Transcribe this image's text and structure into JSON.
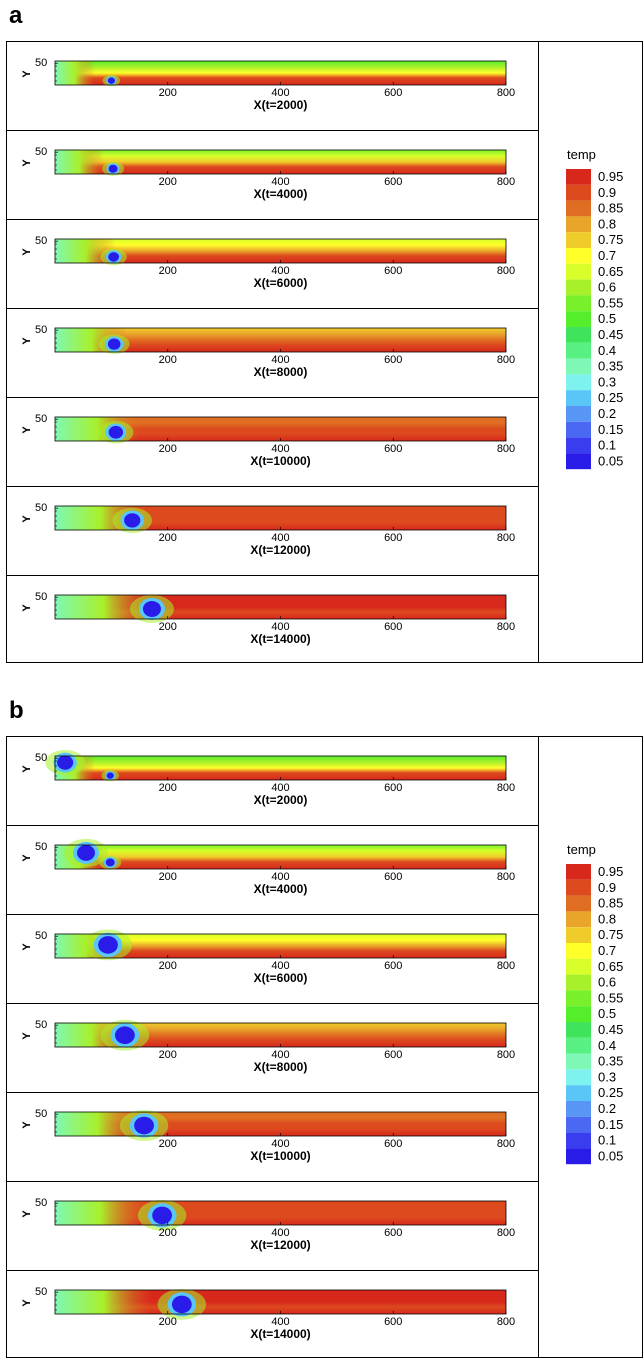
{
  "figures": [
    {
      "letter": "a",
      "panels": [
        {
          "xlabel": "X(t=2000)",
          "bubbles": [
            {
              "x": 100,
              "y": 10,
              "r": 4
            }
          ],
          "hot_extent": 0.0,
          "ylabel": "Y",
          "ytick": "50"
        },
        {
          "xlabel": "X(t=4000)",
          "bubbles": [
            {
              "x": 103,
              "y": 12,
              "r": 5
            }
          ],
          "hot_extent": 0.15,
          "ylabel": "Y",
          "ytick": "50"
        },
        {
          "xlabel": "X(t=6000)",
          "bubbles": [
            {
              "x": 104,
              "y": 14,
              "r": 6
            }
          ],
          "hot_extent": 0.35,
          "ylabel": "Y",
          "ytick": "50"
        },
        {
          "xlabel": "X(t=8000)",
          "bubbles": [
            {
              "x": 105,
              "y": 18,
              "r": 7
            }
          ],
          "hot_extent": 0.55,
          "ylabel": "Y",
          "ytick": "50"
        },
        {
          "xlabel": "X(t=10000)",
          "bubbles": [
            {
              "x": 108,
              "y": 20,
              "r": 8
            }
          ],
          "hot_extent": 0.75,
          "ylabel": "Y",
          "ytick": "50"
        },
        {
          "xlabel": "X(t=12000)",
          "bubbles": [
            {
              "x": 137,
              "y": 22,
              "r": 9
            }
          ],
          "hot_extent": 0.85,
          "ylabel": "Y",
          "ytick": "50"
        },
        {
          "xlabel": "X(t=14000)",
          "bubbles": [
            {
              "x": 172,
              "y": 23,
              "r": 10
            }
          ],
          "hot_extent": 0.95,
          "ylabel": "Y",
          "ytick": "50"
        }
      ]
    },
    {
      "letter": "b",
      "panels": [
        {
          "xlabel": "X(t=2000)",
          "bubbles": [
            {
              "x": 18,
              "y": 40,
              "r": 9
            },
            {
              "x": 98,
              "y": 10,
              "r": 4
            }
          ],
          "hot_extent": 0.0,
          "ylabel": "Y",
          "ytick": "50"
        },
        {
          "xlabel": "X(t=4000)",
          "bubbles": [
            {
              "x": 55,
              "y": 37,
              "r": 10
            },
            {
              "x": 98,
              "y": 15,
              "r": 5
            }
          ],
          "hot_extent": 0.15,
          "ylabel": "Y",
          "ytick": "50"
        },
        {
          "xlabel": "X(t=6000)",
          "bubbles": [
            {
              "x": 94,
              "y": 30,
              "r": 11
            }
          ],
          "hot_extent": 0.35,
          "ylabel": "Y",
          "ytick": "50"
        },
        {
          "xlabel": "X(t=8000)",
          "bubbles": [
            {
              "x": 124,
              "y": 27,
              "r": 11
            }
          ],
          "hot_extent": 0.55,
          "ylabel": "Y",
          "ytick": "50"
        },
        {
          "xlabel": "X(t=10000)",
          "bubbles": [
            {
              "x": 158,
              "y": 24,
              "r": 11
            }
          ],
          "hot_extent": 0.75,
          "ylabel": "Y",
          "ytick": "50"
        },
        {
          "xlabel": "X(t=12000)",
          "bubbles": [
            {
              "x": 190,
              "y": 22,
              "r": 11
            }
          ],
          "hot_extent": 0.85,
          "ylabel": "Y",
          "ytick": "50"
        },
        {
          "xlabel": "X(t=14000)",
          "bubbles": [
            {
              "x": 225,
              "y": 22,
              "r": 11
            }
          ],
          "hot_extent": 0.95,
          "ylabel": "Y",
          "ytick": "50"
        }
      ]
    }
  ],
  "chart_data": {
    "type": "heatmap",
    "x_range": [
      0,
      800
    ],
    "x_ticks": [
      200,
      400,
      600,
      800
    ],
    "y_ticks": [
      50
    ],
    "legend": {
      "title": "temp",
      "placement": "right",
      "levels": [
        {
          "label": "0.95",
          "color": "#d8281c"
        },
        {
          "label": "0.9",
          "color": "#dc4a1e"
        },
        {
          "label": "0.85",
          "color": "#e06e22"
        },
        {
          "label": "0.8",
          "color": "#e8a52a"
        },
        {
          "label": "0.75",
          "color": "#f0cc2a"
        },
        {
          "label": "0.7",
          "color": "#ffff2a"
        },
        {
          "label": "0.65",
          "color": "#d8ff2a"
        },
        {
          "label": "0.6",
          "color": "#a8f02a"
        },
        {
          "label": "0.55",
          "color": "#78f02a"
        },
        {
          "label": "0.5",
          "color": "#55ee2a"
        },
        {
          "label": "0.45",
          "color": "#3fe45c"
        },
        {
          "label": "0.4",
          "color": "#58f082"
        },
        {
          "label": "0.35",
          "color": "#7ef8b4"
        },
        {
          "label": "0.3",
          "color": "#7ef2ee"
        },
        {
          "label": "0.25",
          "color": "#5ac6f8"
        },
        {
          "label": "0.2",
          "color": "#5896f6"
        },
        {
          "label": "0.15",
          "color": "#4a68f2"
        },
        {
          "label": "0.1",
          "color": "#3a3cf0"
        },
        {
          "label": "0.05",
          "color": "#2a1ce8"
        }
      ]
    },
    "hot_color": "#d8281c",
    "bubble_color": "#2a1ce8"
  }
}
